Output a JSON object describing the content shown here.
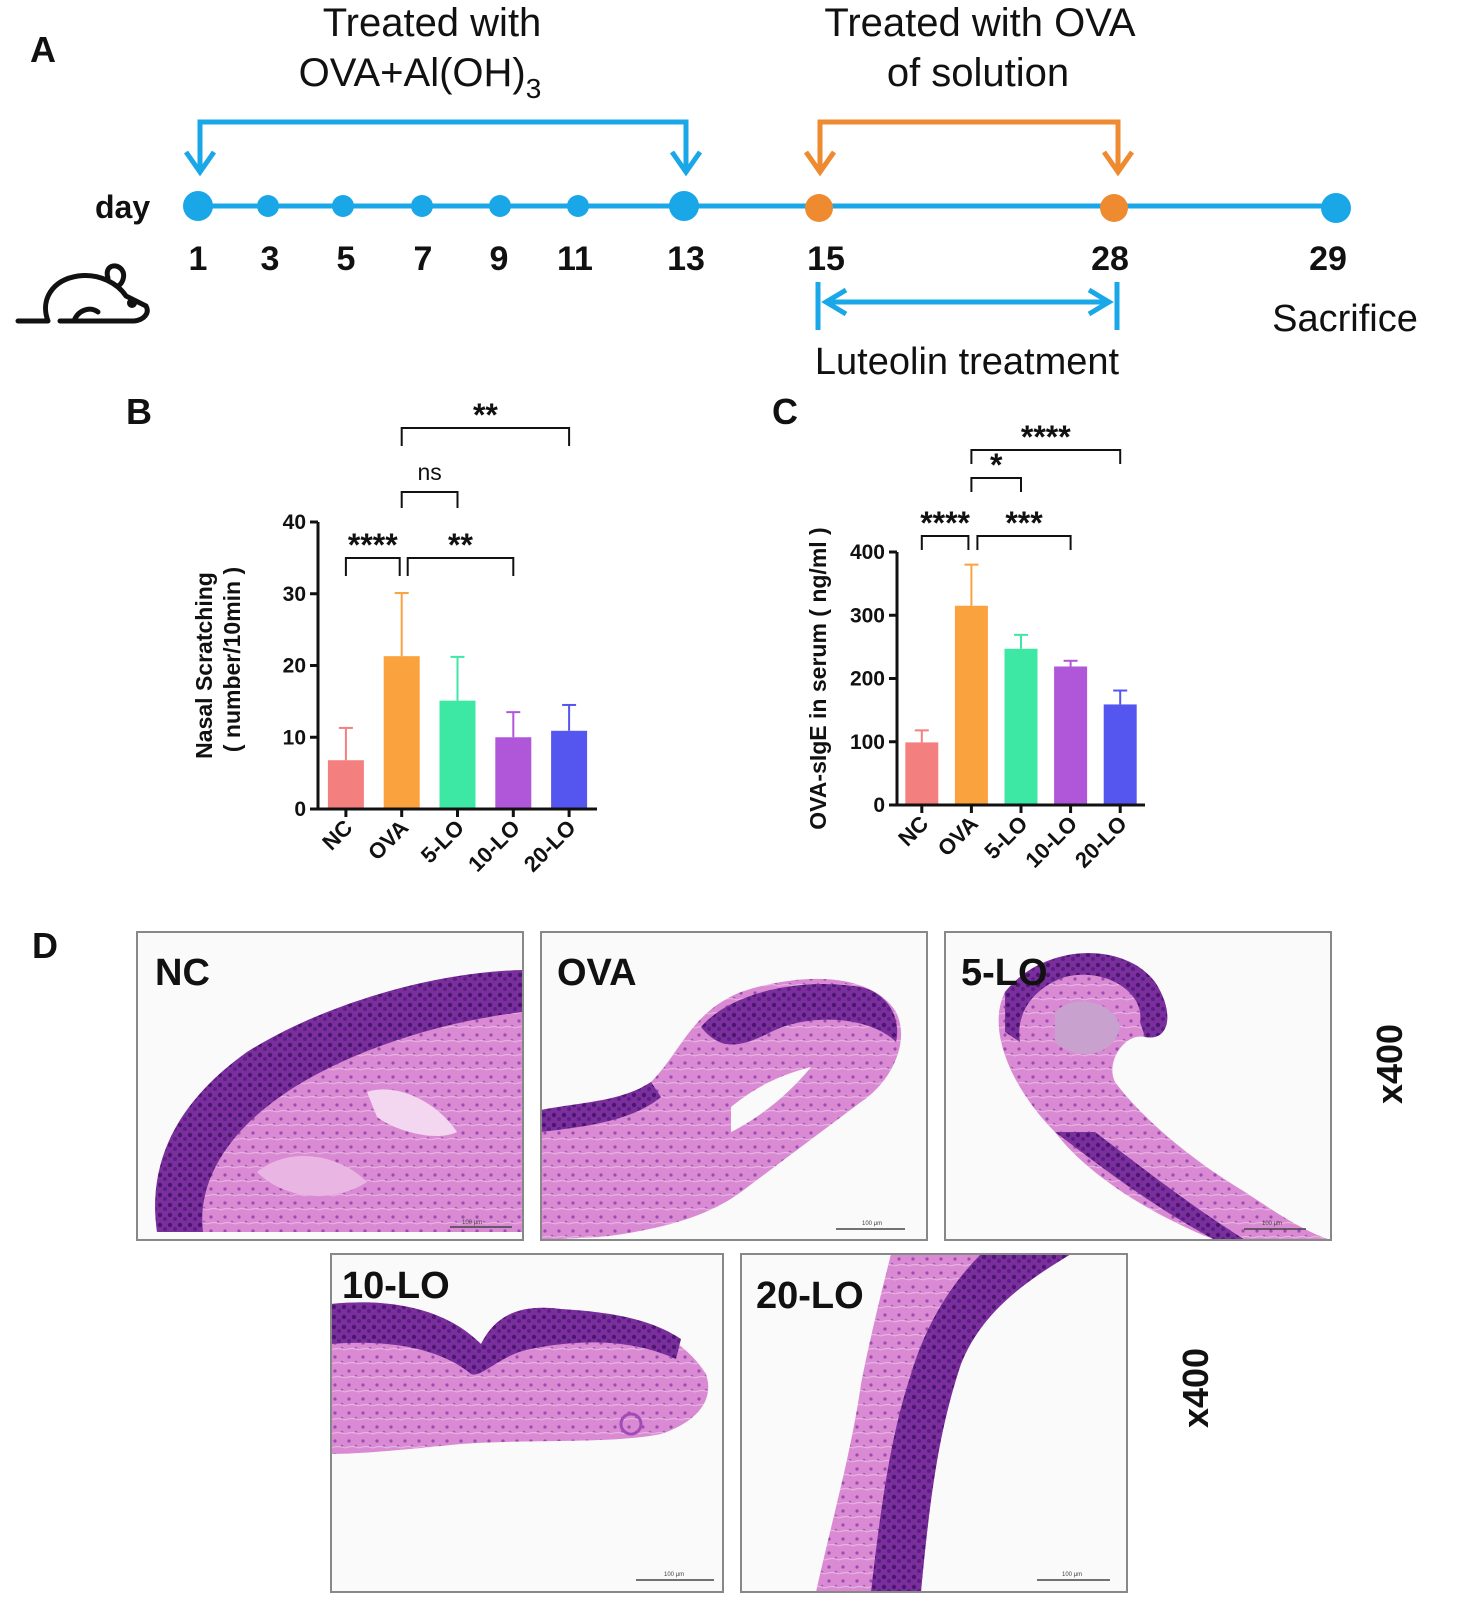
{
  "panel_a": {
    "letter": "A",
    "phase1": {
      "line1": "Treated with",
      "line2": "OVA+Al(OH)",
      "subscript": "3"
    },
    "phase2": {
      "line1": "Treated with OVA",
      "line2": "of solution"
    },
    "day_label": "day",
    "days": [
      "1",
      "3",
      "5",
      "7",
      "9",
      "11",
      "13",
      "15",
      "28",
      "29"
    ],
    "sacrifice": "Sacrifice",
    "treatment": "Luteolin treatment",
    "colors": {
      "blue": "#1aa7e8",
      "orange": "#ee8a30"
    }
  },
  "chart_data": [
    {
      "panel": "B",
      "type": "bar",
      "categories": [
        "NC",
        "OVA",
        "5-LO",
        "10-LO",
        "20-LO"
      ],
      "values": [
        6.8,
        21.3,
        15.1,
        10.0,
        10.9
      ],
      "errors": [
        4.5,
        8.8,
        6.1,
        3.5,
        3.6
      ],
      "colors": [
        "#f47f7f",
        "#f9a23e",
        "#3de8a5",
        "#b057d9",
        "#5555f0"
      ],
      "ylabel": "Nasal Scratching",
      "ylabel2": "( number/10min )",
      "ylim": [
        0,
        40
      ],
      "yticks": [
        "0",
        "10",
        "20",
        "30",
        "40"
      ],
      "significance": [
        {
          "from": "NC",
          "to": "OVA",
          "label": "****"
        },
        {
          "from": "OVA",
          "to": "10-LO",
          "label": "**"
        },
        {
          "from": "OVA",
          "to": "5-LO",
          "label": "ns"
        },
        {
          "from": "OVA",
          "to": "20-LO",
          "label": "**"
        }
      ]
    },
    {
      "panel": "C",
      "type": "bar",
      "categories": [
        "NC",
        "OVA",
        "5-LO",
        "10-LO",
        "20-LO"
      ],
      "values": [
        99,
        315,
        247,
        219,
        159
      ],
      "errors": [
        19,
        65,
        22,
        9,
        22
      ],
      "colors": [
        "#f47f7f",
        "#f9a23e",
        "#3de8a5",
        "#b057d9",
        "#5555f0"
      ],
      "ylabel": "OVA-sIgE in serum ( ng/ml )",
      "ylim": [
        0,
        400
      ],
      "yticks": [
        "0",
        "100",
        "200",
        "300",
        "400"
      ],
      "significance": [
        {
          "from": "NC",
          "to": "OVA",
          "label": "****"
        },
        {
          "from": "OVA",
          "to": "10-LO",
          "label": "***"
        },
        {
          "from": "OVA",
          "to": "5-LO",
          "label": "*"
        },
        {
          "from": "OVA",
          "to": "20-LO",
          "label": "****"
        }
      ]
    }
  ],
  "panel_b": {
    "letter": "B"
  },
  "panel_c": {
    "letter": "C"
  },
  "panel_d": {
    "letter": "D",
    "images": [
      {
        "label": "NC",
        "scale": "100 μm"
      },
      {
        "label": "OVA",
        "scale": "100 μm"
      },
      {
        "label": "5-LO",
        "scale": "100 μm"
      },
      {
        "label": "10-LO",
        "scale": "100 μm"
      },
      {
        "label": "20-LO",
        "scale": "100 μm"
      }
    ],
    "magnification": "x400",
    "tissue_colors": {
      "stroma": "#d98ad3",
      "epithelium": "#8a3aa8",
      "border": "#888888"
    }
  }
}
